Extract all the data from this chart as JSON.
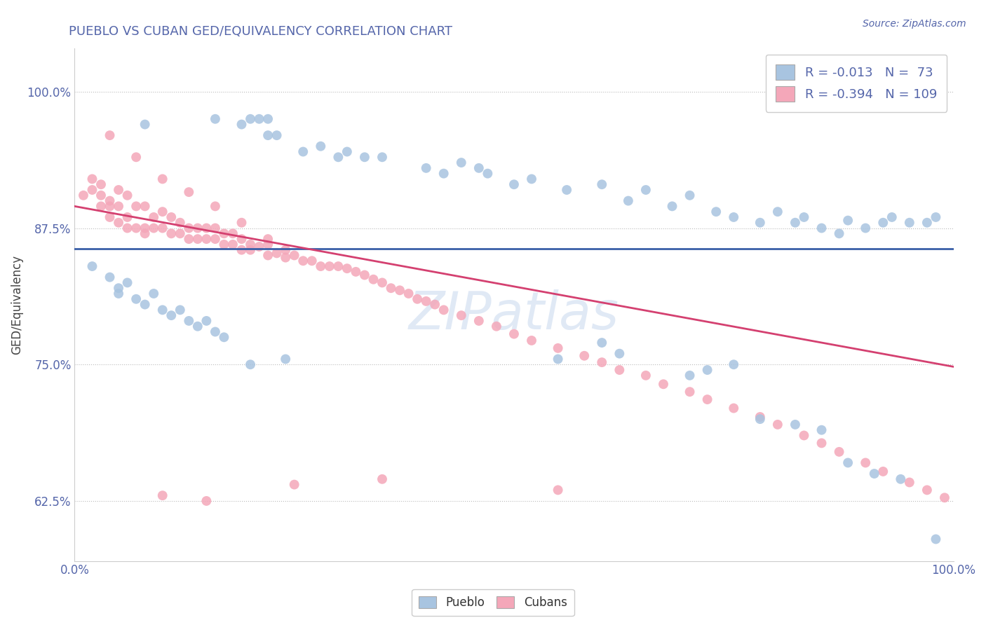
{
  "title": "PUEBLO VS CUBAN GED/EQUIVALENCY CORRELATION CHART",
  "source_text": "Source: ZipAtlas.com",
  "ylabel": "GED/Equivalency",
  "xlim": [
    0.0,
    1.0
  ],
  "ylim": [
    0.57,
    1.04
  ],
  "yticks": [
    0.625,
    0.75,
    0.875,
    1.0
  ],
  "ytick_labels": [
    "62.5%",
    "75.0%",
    "87.5%",
    "100.0%"
  ],
  "xticks": [
    0.0,
    1.0
  ],
  "xtick_labels": [
    "0.0%",
    "100.0%"
  ],
  "legend_label1": "Pueblo",
  "legend_label2": "Cubans",
  "color_blue": "#a8c4e0",
  "color_pink": "#f4a7b9",
  "line_blue": "#3a5fa8",
  "line_pink": "#d44070",
  "title_color": "#5566aa",
  "tick_color": "#5566aa",
  "source_color": "#5566aa",
  "watermark": "ZIPatlas",
  "blue_line_y0": 0.856,
  "blue_line_y1": 0.856,
  "pink_line_y0": 0.895,
  "pink_line_y1": 0.748,
  "pueblo_x": [
    0.08,
    0.16,
    0.19,
    0.2,
    0.21,
    0.22,
    0.22,
    0.23,
    0.26,
    0.28,
    0.3,
    0.31,
    0.33,
    0.35,
    0.4,
    0.42,
    0.44,
    0.46,
    0.47,
    0.5,
    0.52,
    0.56,
    0.6,
    0.63,
    0.65,
    0.68,
    0.7,
    0.73,
    0.75,
    0.78,
    0.8,
    0.82,
    0.83,
    0.85,
    0.87,
    0.88,
    0.9,
    0.92,
    0.93,
    0.95,
    0.97,
    0.98,
    0.02,
    0.04,
    0.05,
    0.05,
    0.06,
    0.07,
    0.08,
    0.09,
    0.1,
    0.11,
    0.12,
    0.13,
    0.14,
    0.15,
    0.16,
    0.17,
    0.6,
    0.62,
    0.7,
    0.72,
    0.78,
    0.82,
    0.85,
    0.88,
    0.91,
    0.94,
    0.98,
    0.2,
    0.24,
    0.55,
    0.75
  ],
  "pueblo_y": [
    0.97,
    0.975,
    0.97,
    0.975,
    0.975,
    0.96,
    0.975,
    0.96,
    0.945,
    0.95,
    0.94,
    0.945,
    0.94,
    0.94,
    0.93,
    0.925,
    0.935,
    0.93,
    0.925,
    0.915,
    0.92,
    0.91,
    0.915,
    0.9,
    0.91,
    0.895,
    0.905,
    0.89,
    0.885,
    0.88,
    0.89,
    0.88,
    0.885,
    0.875,
    0.87,
    0.882,
    0.875,
    0.88,
    0.885,
    0.88,
    0.88,
    0.885,
    0.84,
    0.83,
    0.82,
    0.815,
    0.825,
    0.81,
    0.805,
    0.815,
    0.8,
    0.795,
    0.8,
    0.79,
    0.785,
    0.79,
    0.78,
    0.775,
    0.77,
    0.76,
    0.74,
    0.745,
    0.7,
    0.695,
    0.69,
    0.66,
    0.65,
    0.645,
    0.59,
    0.75,
    0.755,
    0.755,
    0.75
  ],
  "cuban_x": [
    0.01,
    0.02,
    0.02,
    0.03,
    0.03,
    0.03,
    0.04,
    0.04,
    0.04,
    0.05,
    0.05,
    0.05,
    0.06,
    0.06,
    0.06,
    0.07,
    0.07,
    0.08,
    0.08,
    0.08,
    0.09,
    0.09,
    0.1,
    0.1,
    0.11,
    0.11,
    0.12,
    0.12,
    0.13,
    0.13,
    0.14,
    0.14,
    0.15,
    0.15,
    0.16,
    0.16,
    0.17,
    0.17,
    0.18,
    0.18,
    0.19,
    0.19,
    0.2,
    0.2,
    0.21,
    0.22,
    0.22,
    0.23,
    0.24,
    0.24,
    0.25,
    0.26,
    0.27,
    0.28,
    0.29,
    0.3,
    0.31,
    0.32,
    0.33,
    0.34,
    0.35,
    0.36,
    0.37,
    0.38,
    0.39,
    0.4,
    0.41,
    0.42,
    0.44,
    0.46,
    0.48,
    0.5,
    0.52,
    0.55,
    0.58,
    0.6,
    0.62,
    0.65,
    0.67,
    0.7,
    0.72,
    0.75,
    0.78,
    0.8,
    0.83,
    0.85,
    0.87,
    0.9,
    0.92,
    0.95,
    0.97,
    0.99,
    0.04,
    0.07,
    0.1,
    0.13,
    0.16,
    0.19,
    0.22,
    0.1,
    0.15,
    0.25,
    0.35,
    0.55
  ],
  "cuban_y": [
    0.905,
    0.91,
    0.92,
    0.915,
    0.895,
    0.905,
    0.9,
    0.885,
    0.895,
    0.91,
    0.895,
    0.88,
    0.905,
    0.885,
    0.875,
    0.895,
    0.875,
    0.895,
    0.875,
    0.87,
    0.885,
    0.875,
    0.89,
    0.875,
    0.885,
    0.87,
    0.88,
    0.87,
    0.875,
    0.865,
    0.875,
    0.865,
    0.875,
    0.865,
    0.875,
    0.865,
    0.87,
    0.86,
    0.87,
    0.86,
    0.865,
    0.855,
    0.86,
    0.855,
    0.858,
    0.86,
    0.85,
    0.852,
    0.855,
    0.848,
    0.85,
    0.845,
    0.845,
    0.84,
    0.84,
    0.84,
    0.838,
    0.835,
    0.832,
    0.828,
    0.825,
    0.82,
    0.818,
    0.815,
    0.81,
    0.808,
    0.805,
    0.8,
    0.795,
    0.79,
    0.785,
    0.778,
    0.772,
    0.765,
    0.758,
    0.752,
    0.745,
    0.74,
    0.732,
    0.725,
    0.718,
    0.71,
    0.702,
    0.695,
    0.685,
    0.678,
    0.67,
    0.66,
    0.652,
    0.642,
    0.635,
    0.628,
    0.96,
    0.94,
    0.92,
    0.908,
    0.895,
    0.88,
    0.865,
    0.63,
    0.625,
    0.64,
    0.645,
    0.635
  ]
}
